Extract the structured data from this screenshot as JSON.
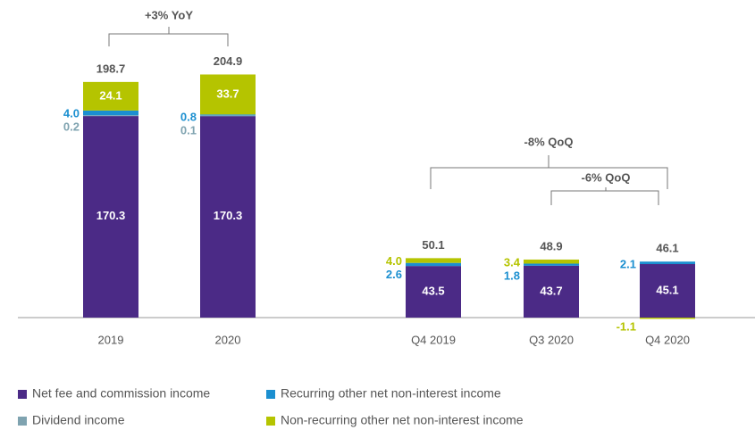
{
  "chart_data": {
    "type": "stacked_bar",
    "categories": [
      "2019",
      "2020",
      "Q4 2019",
      "Q3 2020",
      "Q4 2020"
    ],
    "series": [
      {
        "name": "Net fee and commission income",
        "color": "#4b2a86",
        "values": [
          170.3,
          170.3,
          43.5,
          43.7,
          45.1
        ]
      },
      {
        "name": "Dividend income",
        "color": "#7fa3b0",
        "values": [
          0.2,
          0.1,
          null,
          null,
          null
        ]
      },
      {
        "name": "Recurring other net non-interest income",
        "color": "#1b8fd0",
        "values": [
          4.0,
          0.8,
          2.6,
          1.8,
          2.1
        ]
      },
      {
        "name": "Non-recurring other net non-interest income",
        "color": "#b5c400",
        "values": [
          24.1,
          33.7,
          4.0,
          3.4,
          -1.1
        ]
      }
    ],
    "value_labels": [
      [
        "170.3",
        "170.3",
        "43.5",
        "43.7",
        "45.1"
      ],
      [
        "0.2",
        "0.1",
        null,
        null,
        null
      ],
      [
        "4.0",
        "0.8",
        "2.6",
        "1.8",
        "2.1"
      ],
      [
        "24.1",
        "33.7",
        "4.0",
        "3.4",
        "-1.1"
      ]
    ],
    "totals": [
      198.7,
      204.9,
      50.1,
      48.9,
      46.1
    ],
    "annotations": [
      "+3% YoY",
      "-8% QoQ",
      "-6% QoQ"
    ]
  }
}
